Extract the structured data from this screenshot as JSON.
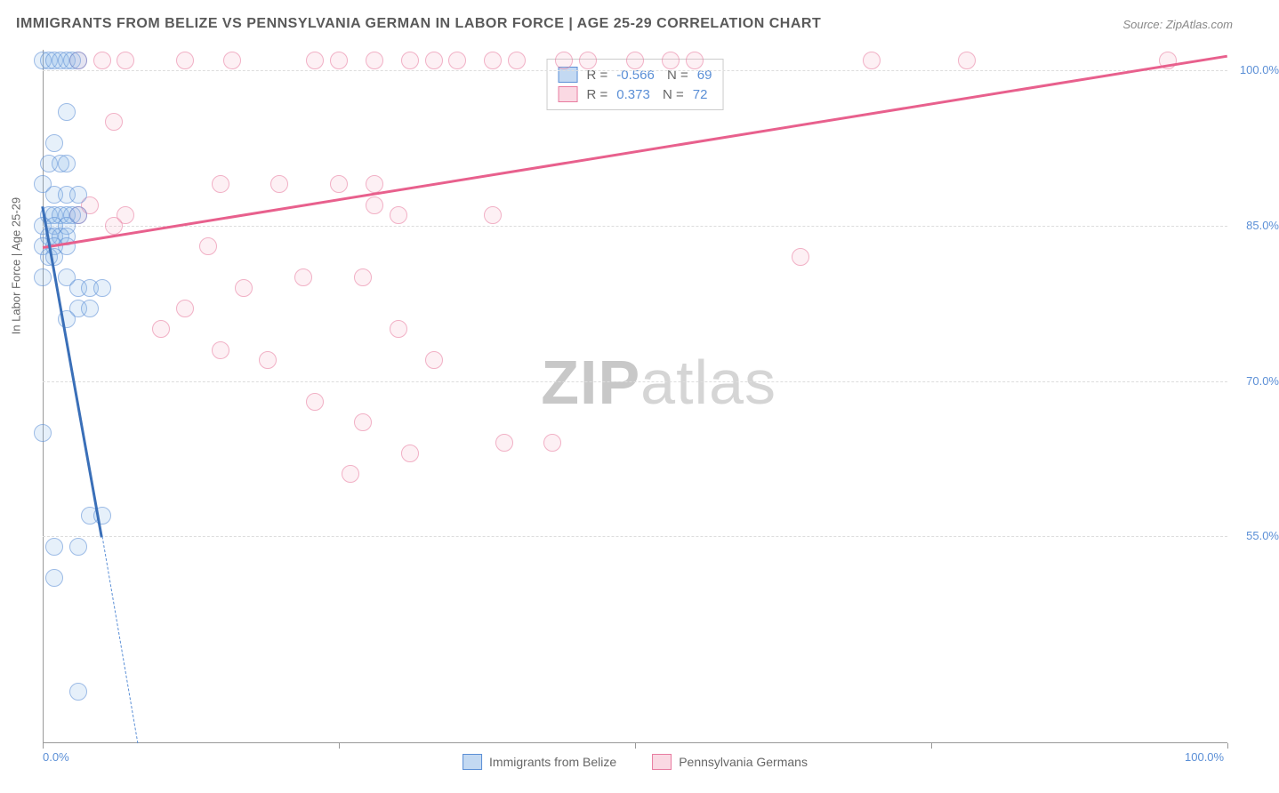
{
  "title": "IMMIGRANTS FROM BELIZE VS PENNSYLVANIA GERMAN IN LABOR FORCE | AGE 25-29 CORRELATION CHART",
  "source": "Source: ZipAtlas.com",
  "y_axis_title": "In Labor Force | Age 25-29",
  "watermark_a": "ZIP",
  "watermark_b": "atlas",
  "chart": {
    "type": "scatter",
    "xlim": [
      0,
      100
    ],
    "ylim": [
      35,
      102
    ],
    "x_ticks": [
      0,
      25,
      50,
      75,
      100
    ],
    "x_tick_labels": [
      "0.0%",
      "",
      "",
      "",
      "100.0%"
    ],
    "y_gridlines": [
      55,
      70,
      85,
      100
    ],
    "y_labels": [
      "55.0%",
      "70.0%",
      "85.0%",
      "100.0%"
    ],
    "grid_color": "#dddddd",
    "axis_color": "#999999",
    "background_color": "#ffffff",
    "marker_radius": 10,
    "label_color": "#5b8fd6",
    "series_blue": {
      "label": "Immigrants from Belize",
      "R": "-0.566",
      "N": "69",
      "fill": "rgba(135,180,230,0.35)",
      "stroke": "#5b8fd6",
      "trend_color": "#3a6fb8",
      "trend_start": [
        0,
        87
      ],
      "trend_end": [
        8,
        35
      ],
      "points": [
        [
          0,
          101
        ],
        [
          0.5,
          101
        ],
        [
          1,
          101
        ],
        [
          1.5,
          101
        ],
        [
          2,
          101
        ],
        [
          2.5,
          101
        ],
        [
          3,
          101
        ],
        [
          2,
          96
        ],
        [
          1,
          93
        ],
        [
          0.5,
          91
        ],
        [
          1.5,
          91
        ],
        [
          2,
          91
        ],
        [
          0,
          89
        ],
        [
          1,
          88
        ],
        [
          2,
          88
        ],
        [
          3,
          88
        ],
        [
          0.5,
          86
        ],
        [
          1,
          86
        ],
        [
          1.5,
          86
        ],
        [
          2,
          86
        ],
        [
          2.5,
          86
        ],
        [
          3,
          86
        ],
        [
          0,
          85
        ],
        [
          1,
          85
        ],
        [
          2,
          85
        ],
        [
          0.5,
          84
        ],
        [
          1,
          84
        ],
        [
          1.5,
          84
        ],
        [
          2,
          84
        ],
        [
          0,
          83
        ],
        [
          1,
          83
        ],
        [
          2,
          83
        ],
        [
          0.5,
          82
        ],
        [
          1,
          82
        ],
        [
          0,
          80
        ],
        [
          2,
          80
        ],
        [
          3,
          79
        ],
        [
          4,
          79
        ],
        [
          5,
          79
        ],
        [
          3,
          77
        ],
        [
          4,
          77
        ],
        [
          2,
          76
        ],
        [
          0,
          65
        ],
        [
          4,
          57
        ],
        [
          5,
          57
        ],
        [
          1,
          54
        ],
        [
          3,
          54
        ],
        [
          1,
          51
        ],
        [
          3,
          40
        ]
      ]
    },
    "series_pink": {
      "label": "Pennsylvania Germans",
      "R": "0.373",
      "N": "72",
      "fill": "rgba(245,180,200,0.35)",
      "stroke": "#e87ca0",
      "trend_color": "#e8608d",
      "trend_start": [
        0,
        83
      ],
      "trend_end": [
        100,
        101.5
      ],
      "points": [
        [
          3,
          101
        ],
        [
          5,
          101
        ],
        [
          7,
          101
        ],
        [
          12,
          101
        ],
        [
          16,
          101
        ],
        [
          23,
          101
        ],
        [
          25,
          101
        ],
        [
          28,
          101
        ],
        [
          31,
          101
        ],
        [
          33,
          101
        ],
        [
          35,
          101
        ],
        [
          38,
          101
        ],
        [
          40,
          101
        ],
        [
          44,
          101
        ],
        [
          46,
          101
        ],
        [
          50,
          101
        ],
        [
          53,
          101
        ],
        [
          55,
          101
        ],
        [
          70,
          101
        ],
        [
          78,
          101
        ],
        [
          95,
          101
        ],
        [
          6,
          95
        ],
        [
          20,
          89
        ],
        [
          15,
          89
        ],
        [
          25,
          89
        ],
        [
          28,
          89
        ],
        [
          28,
          87
        ],
        [
          30,
          86
        ],
        [
          7,
          86
        ],
        [
          3,
          86
        ],
        [
          4,
          87
        ],
        [
          6,
          85
        ],
        [
          38,
          86
        ],
        [
          14,
          83
        ],
        [
          22,
          80
        ],
        [
          27,
          80
        ],
        [
          64,
          82
        ],
        [
          17,
          79
        ],
        [
          30,
          75
        ],
        [
          10,
          75
        ],
        [
          12,
          77
        ],
        [
          15,
          73
        ],
        [
          19,
          72
        ],
        [
          33,
          72
        ],
        [
          23,
          68
        ],
        [
          27,
          66
        ],
        [
          39,
          64
        ],
        [
          43,
          64
        ],
        [
          31,
          63
        ],
        [
          26,
          61
        ]
      ]
    }
  },
  "legend_bottom": [
    {
      "label": "Immigrants from Belize",
      "swatch": "blue"
    },
    {
      "label": "Pennsylvania Germans",
      "swatch": "pink"
    }
  ]
}
